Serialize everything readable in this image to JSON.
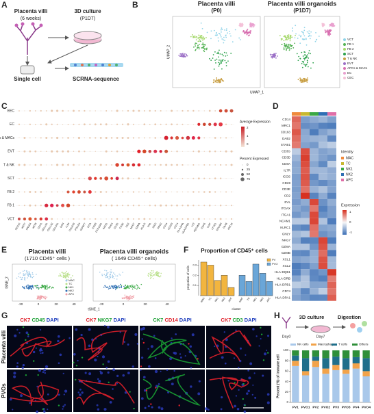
{
  "panels": {
    "A": {
      "letter": "A",
      "tissue": "Placenta villi",
      "age": "(6 weeks)",
      "culture": "3D culture",
      "passage": "(P1D7)",
      "single_cell": "Single cell",
      "sequencing": "SCRNA-sequence"
    },
    "B": {
      "letter": "B",
      "titles": [
        "Placenta villi",
        "Placenta villi organoids"
      ],
      "subtitles": [
        "(P0)",
        "(P1D7)"
      ],
      "x_label": "UMAP_1",
      "y_label": "UMAP_2",
      "legend": [
        "VCT",
        "FB 1",
        "FB 2",
        "SCT",
        "T & NK",
        "EVT",
        "APCs & MACs",
        "EC",
        "CEC"
      ],
      "colors": [
        "#8fd3e8",
        "#56b356",
        "#a5d86a",
        "#2ca24c",
        "#c9a046",
        "#9b6fc6",
        "#d86fb0",
        "#e9a0cf",
        "#f4c1d8"
      ]
    },
    "C": {
      "letter": "C",
      "rows": [
        "EEC",
        "EC",
        "APCs & MACs",
        "EVT",
        "T & NK",
        "SCT",
        "FB 2",
        "FB 1",
        "VCT"
      ],
      "genes": [
        "PEG10",
        "KRT7",
        "PAGE4",
        "KRT8",
        "CDH1",
        "COL1A1",
        "COL1A2",
        "COL3A1",
        "DCN",
        "LUM",
        "COL6A3",
        "POSTN",
        "IGFBP7",
        "CGA",
        "CGB3",
        "CYP19A1",
        "KISS1",
        "PSG4",
        "CD3D",
        "CD3E",
        "CD2",
        "NKG7",
        "GZMA",
        "HLA-G",
        "FN1",
        "DIO2",
        "PRG2",
        "CD14",
        "CD163",
        "CD74",
        "HLA-DRA",
        "HLA-DPB1",
        "LYZ",
        "PECAM1",
        "CDH5",
        "VWF",
        "LYVE1",
        "EPCAM",
        "PAX8",
        "KRT19"
      ],
      "color_legend_title": "Average Expression",
      "color_ticks": [
        2,
        1,
        0
      ],
      "size_legend_title": "Percent Expressed",
      "size_ticks": [
        0,
        25,
        50,
        75
      ]
    },
    "D": {
      "letter": "D",
      "genes": [
        "CD14",
        "MRC1",
        "CD163",
        "DAB2",
        "STAB1",
        "CD3G",
        "CD3D",
        "CD8A",
        "IL7R",
        "ICOS",
        "CD28",
        "CD3E",
        "CD2",
        "EVL",
        "ITGAX",
        "ITGA1",
        "NCAM1",
        "KLRC1",
        "GNLY",
        "NKG7",
        "GZMA",
        "GZMB",
        "XCL1",
        "XCL2",
        "HLA-DQB1",
        "HLA-DRB",
        "HLA-DPB1",
        "CD74",
        "HLA-DPA1"
      ],
      "identity_title": "Identity",
      "identities": [
        "MAC",
        "TC",
        "NK1",
        "NK2",
        "APC"
      ],
      "identity_colors": [
        "#f08a3c",
        "#c8b830",
        "#3aa845",
        "#2f6fb4",
        "#e06fa8"
      ],
      "expression_title": "Expression",
      "expression_ticks": [
        1,
        0,
        -1
      ]
    },
    "E": {
      "letter": "E",
      "titles": [
        "Placenta villi",
        "Placenta villi organoids"
      ],
      "subtitles": [
        "(1710  CD45⁺ cells )",
        "( 1649 CD45⁺ cells)"
      ],
      "x_label": "tSNE_1",
      "y_label": "tSNE_2",
      "x_ticks": [
        -20,
        0,
        20,
        40
      ],
      "legend": [
        "MAC",
        "TC",
        "NK1",
        "NK2",
        "APC"
      ],
      "colors": [
        "#9ec9e8",
        "#b9e08a",
        "#3aa845",
        "#2f6fb4",
        "#f0a0a8"
      ]
    },
    "F": {
      "letter": "F"
    },
    "G": {
      "letter": "G",
      "columns": [
        [
          "CK7",
          "CD45",
          "DAPI"
        ],
        [
          "CK7",
          "NKG7",
          "DAPI"
        ],
        [
          "CK7",
          "CD14",
          "DAPI"
        ],
        [
          "CK7",
          "CD3",
          "DAPI"
        ]
      ],
      "stain_colors": [
        [
          "#e0202a",
          "#1aa033",
          "#1f3fbf"
        ],
        [
          "#e0202a",
          "#1aa033",
          "#1f3fbf"
        ],
        [
          "#1aa033",
          "#e0202a",
          "#1f3fbf"
        ],
        [
          "#e0202a",
          "#1aa033",
          "#1f3fbf"
        ]
      ],
      "rows": [
        "Placenta villi",
        "PVOs"
      ]
    },
    "H": {
      "letter": "H",
      "culture": "3D culture",
      "digestion": "Digestion",
      "day0": "Day0",
      "day7": "Day7"
    }
  },
  "chart_data": [
    {
      "type": "bar",
      "title": "Proportion of CD45⁺ cells",
      "x_label": "cluster",
      "y_label": "proportion of cells",
      "categories": [
        "MAC",
        "TC",
        "NK1",
        "NK2",
        "APC"
      ],
      "series": [
        {
          "name": "PV",
          "color": "#f2b53f",
          "values": [
            0.33,
            0.3,
            0.15,
            0.2,
            0.08
          ]
        },
        {
          "name": "PVO",
          "color": "#6aa6d8",
          "values": [
            0.2,
            0.14,
            0.31,
            0.22,
            0.14
          ]
        }
      ],
      "ylim": [
        0,
        0.35
      ],
      "yticks": [
        0.1,
        0.2,
        0.3
      ]
    },
    {
      "type": "bar",
      "stacked": true,
      "y_label": "Percent (%) of immune cell",
      "categories": [
        "PV1",
        "PVO1",
        "PV2",
        "PVO2",
        "PV3",
        "PVO3",
        "PV4",
        "PVO4"
      ],
      "series": [
        {
          "name": "NK cells",
          "color": "#a9c8ea",
          "values": [
            70,
            52,
            68,
            55,
            62,
            55,
            65,
            50
          ]
        },
        {
          "name": "Macrophage",
          "color": "#f2a34a",
          "values": [
            10,
            8,
            12,
            10,
            10,
            8,
            10,
            10
          ]
        },
        {
          "name": "T cells",
          "color": "#1f6f8b",
          "values": [
            10,
            25,
            8,
            20,
            16,
            22,
            12,
            25
          ]
        },
        {
          "name": "Others",
          "color": "#2f8f3a",
          "values": [
            10,
            15,
            12,
            15,
            12,
            15,
            13,
            15
          ]
        }
      ],
      "ylim": [
        0,
        100
      ],
      "yticks": [
        0,
        20,
        40,
        60,
        80,
        100
      ]
    }
  ]
}
